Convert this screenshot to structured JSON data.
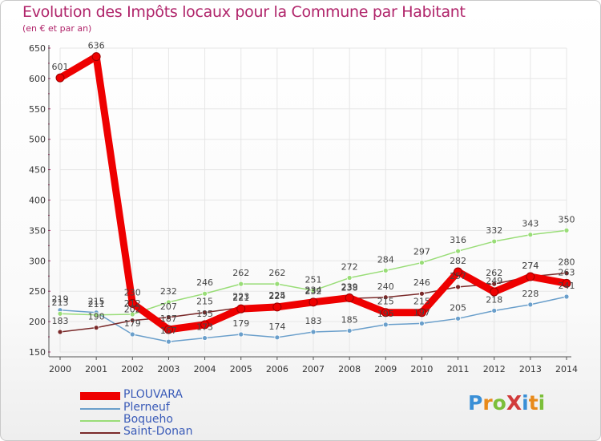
{
  "title": "Evolution des Impôts locaux pour la Commune par Habitant",
  "subtitle": "(en € et par an)",
  "logo": {
    "text": "ProXiti",
    "letters": [
      {
        "ch": "P",
        "color": "#3a8fd6"
      },
      {
        "ch": "r",
        "color": "#e88a1a"
      },
      {
        "ch": "o",
        "color": "#7cbf3a"
      },
      {
        "ch": "X",
        "color": "#d13a3a"
      },
      {
        "ch": "i",
        "color": "#3a8fd6"
      },
      {
        "ch": "t",
        "color": "#e88a1a"
      },
      {
        "ch": "i",
        "color": "#7cbf3a"
      }
    ]
  },
  "chart_data": {
    "type": "line",
    "title": "Evolution des Impôts locaux pour la Commune par Habitant",
    "subtitle": "(en € et par an)",
    "xlabel": "",
    "ylabel": "",
    "x": [
      "2000",
      "2001",
      "2002",
      "2003",
      "2004",
      "2005",
      "2006",
      "2007",
      "2008",
      "2009",
      "2010",
      "2011",
      "2012",
      "2013",
      "2014"
    ],
    "ylim": [
      150,
      650
    ],
    "yticks": [
      150,
      200,
      250,
      300,
      350,
      400,
      450,
      500,
      550,
      600,
      650
    ],
    "grid": true,
    "legend_position": "bottom-left",
    "series": [
      {
        "name": "PLOUVARA",
        "color": "#ee0000",
        "bold": true,
        "values": [
          601,
          636,
          230,
          187,
          195,
          221,
          224,
          232,
          239,
          215,
          215,
          282,
          249,
          274,
          263
        ]
      },
      {
        "name": "Plerneuf",
        "color": "#6a9fcb",
        "values": [
          219,
          215,
          179,
          167,
          173,
          179,
          174,
          183,
          185,
          195,
          197,
          205,
          218,
          228,
          241
        ]
      },
      {
        "name": "Boqueho",
        "color": "#99dd77",
        "values": [
          213,
          211,
          212,
          232,
          246,
          262,
          262,
          251,
          272,
          284,
          297,
          316,
          332,
          343,
          350
        ]
      },
      {
        "name": "Saint-Donan",
        "color": "#7a2a2a",
        "values": [
          183,
          190,
          202,
          207,
          215,
          223,
          225,
          234,
          238,
          240,
          246,
          257,
          262,
          274,
          280
        ]
      }
    ]
  }
}
